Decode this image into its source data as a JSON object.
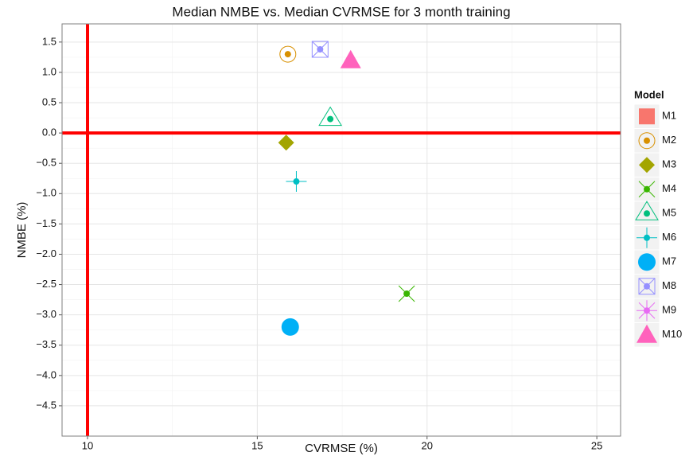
{
  "chart_data": {
    "type": "scatter",
    "title": "Median NMBE vs. Median CVRMSE for 3 month training",
    "x_label": "CVRMSE (%)",
    "y_label": "NMBE (%)",
    "legend_title": "Model",
    "legend_position": "right",
    "grid": true,
    "xlim": [
      9.25,
      25.7
    ],
    "ylim": [
      -5.0,
      1.8
    ],
    "xticks": [
      10,
      15,
      20,
      25
    ],
    "yticks": [
      {
        "value": 1.5,
        "label": "1.5"
      },
      {
        "value": 1,
        "label": "1.0"
      },
      {
        "value": 0.5,
        "label": "0.5"
      },
      {
        "value": 0,
        "label": "0.0"
      },
      {
        "value": -0.5,
        "label": "−0.5"
      },
      {
        "value": -1,
        "label": "−1.0"
      },
      {
        "value": -1.5,
        "label": "−1.5"
      },
      {
        "value": -2,
        "label": "−2.0"
      },
      {
        "value": -2.5,
        "label": "−2.5"
      },
      {
        "value": -3,
        "label": "−3.0"
      },
      {
        "value": -3.5,
        "label": "−3.5"
      },
      {
        "value": -4,
        "label": "−4.0"
      },
      {
        "value": -4.5,
        "label": "−4.5"
      }
    ],
    "reference_lines": {
      "x": 10,
      "y": 0,
      "color": "#ff0000"
    },
    "series": [
      {
        "name": "M1",
        "color": "#F8766D",
        "shape": "square",
        "x": [
          null
        ],
        "values": [
          null
        ]
      },
      {
        "name": "M2",
        "color": "#D89000",
        "shape": "circle-dot",
        "x": [
          15.9
        ],
        "values": [
          1.3
        ]
      },
      {
        "name": "M3",
        "color": "#A3A500",
        "shape": "diamond",
        "x": [
          15.85
        ],
        "values": [
          -0.16
        ]
      },
      {
        "name": "M4",
        "color": "#39B600",
        "shape": "cross-dot",
        "x": [
          19.4
        ],
        "values": [
          -2.65
        ]
      },
      {
        "name": "M5",
        "color": "#00BF7D",
        "shape": "triangle-dot",
        "x": [
          17.15
        ],
        "values": [
          0.23
        ]
      },
      {
        "name": "M6",
        "color": "#00BFC4",
        "shape": "plus-dot",
        "x": [
          16.15
        ],
        "values": [
          -0.8
        ]
      },
      {
        "name": "M7",
        "color": "#00B0F6",
        "shape": "circle",
        "x": [
          15.97
        ],
        "values": [
          -3.2
        ]
      },
      {
        "name": "M8",
        "color": "#9590FF",
        "shape": "square-cross-dot",
        "x": [
          16.85
        ],
        "values": [
          1.38
        ]
      },
      {
        "name": "M9",
        "color": "#E76BF3",
        "shape": "asterisk-dot",
        "x": [
          null
        ],
        "values": [
          null
        ]
      },
      {
        "name": "M10",
        "color": "#FF62BC",
        "shape": "triangle",
        "x": [
          17.75
        ],
        "values": [
          1.2
        ]
      }
    ]
  }
}
